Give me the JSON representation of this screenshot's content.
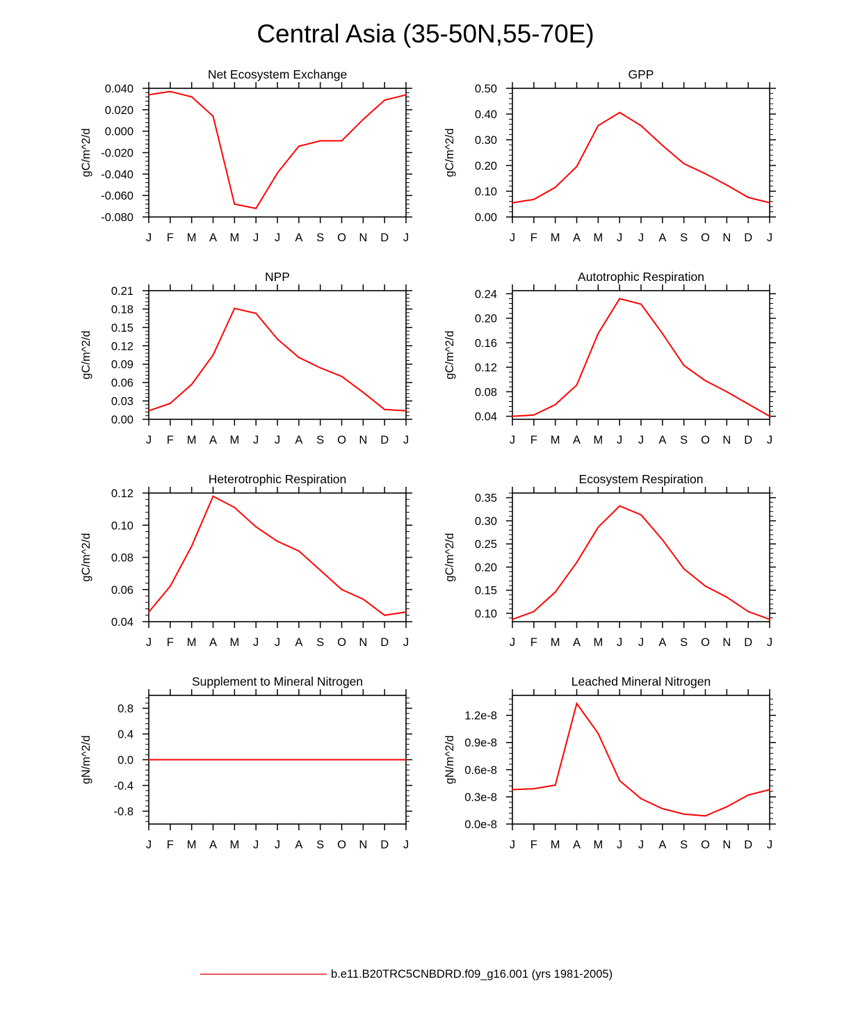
{
  "page": {
    "title": "Central Asia (35-50N,55-70E)"
  },
  "legend": {
    "line_color": "#e0202a",
    "label": "b.e11.B20TRC5CNBDRD.f09_g16.001 (yrs 1981-2005)"
  },
  "chart_data": [
    {
      "type": "line",
      "title": "Net Ecosystem Exchange",
      "ylabel": "gC/m^2/d",
      "x": [
        "J",
        "F",
        "M",
        "A",
        "M",
        "J",
        "J",
        "A",
        "S",
        "O",
        "N",
        "D",
        "J"
      ],
      "series": [
        {
          "name": "b.e11.B20TRC5CNBDRD.f09_g16.001 (yrs 1981-2005)",
          "color": "#ff0000",
          "values": [
            0.034,
            0.037,
            0.032,
            0.014,
            -0.068,
            -0.072,
            -0.039,
            -0.014,
            -0.009,
            -0.009,
            0.011,
            0.029,
            0.034
          ]
        }
      ],
      "ylim": [
        -0.08,
        0.04
      ],
      "yticks": [
        -0.08,
        -0.06,
        -0.04,
        -0.02,
        0.0,
        0.02,
        0.04
      ],
      "ytick_labels": [
        "-0.080",
        "-0.060",
        "-0.040",
        "-0.020",
        "0.000",
        "0.020",
        "0.040"
      ]
    },
    {
      "type": "line",
      "title": "GPP",
      "ylabel": "gC/m^2/d",
      "x": [
        "J",
        "F",
        "M",
        "A",
        "M",
        "J",
        "J",
        "A",
        "S",
        "O",
        "N",
        "D",
        "J"
      ],
      "series": [
        {
          "name": "b.e11.B20TRC5CNBDRD.f09_g16.001 (yrs 1981-2005)",
          "color": "#ff0000",
          "values": [
            0.055,
            0.068,
            0.115,
            0.196,
            0.355,
            0.406,
            0.355,
            0.278,
            0.207,
            0.168,
            0.124,
            0.076,
            0.055
          ]
        }
      ],
      "ylim": [
        0.0,
        0.5
      ],
      "yticks": [
        0.0,
        0.1,
        0.2,
        0.3,
        0.4,
        0.5
      ],
      "ytick_labels": [
        "0.00",
        "0.10",
        "0.20",
        "0.30",
        "0.40",
        "0.50"
      ]
    },
    {
      "type": "line",
      "title": "NPP",
      "ylabel": "gC/m^2/d",
      "x": [
        "J",
        "F",
        "M",
        "A",
        "M",
        "J",
        "J",
        "A",
        "S",
        "O",
        "N",
        "D",
        "J"
      ],
      "series": [
        {
          "name": "b.e11.B20TRC5CNBDRD.f09_g16.001 (yrs 1981-2005)",
          "color": "#ff0000",
          "values": [
            0.014,
            0.026,
            0.057,
            0.105,
            0.181,
            0.173,
            0.131,
            0.101,
            0.084,
            0.07,
            0.044,
            0.016,
            0.014
          ]
        }
      ],
      "ylim": [
        0.0,
        0.21
      ],
      "yticks": [
        0.0,
        0.03,
        0.06,
        0.09,
        0.12,
        0.15,
        0.18,
        0.21
      ],
      "ytick_labels": [
        "0.00",
        "0.03",
        "0.06",
        "0.09",
        "0.12",
        "0.15",
        "0.18",
        "0.21"
      ]
    },
    {
      "type": "line",
      "title": "Autotrophic Respiration",
      "ylabel": "gC/m^2/d",
      "x": [
        "J",
        "F",
        "M",
        "A",
        "M",
        "J",
        "J",
        "A",
        "S",
        "O",
        "N",
        "D",
        "J"
      ],
      "series": [
        {
          "name": "b.e11.B20TRC5CNBDRD.f09_g16.001 (yrs 1981-2005)",
          "color": "#ff0000",
          "values": [
            0.04,
            0.042,
            0.059,
            0.091,
            0.175,
            0.232,
            0.223,
            0.175,
            0.123,
            0.098,
            0.08,
            0.06,
            0.04
          ]
        }
      ],
      "ylim": [
        0.035,
        0.245
      ],
      "yticks": [
        0.04,
        0.08,
        0.12,
        0.16,
        0.2,
        0.24
      ],
      "ytick_labels": [
        "0.04",
        "0.08",
        "0.12",
        "0.16",
        "0.20",
        "0.24"
      ]
    },
    {
      "type": "line",
      "title": "Heterotrophic Respiration",
      "ylabel": "gC/m^2/d",
      "x": [
        "J",
        "F",
        "M",
        "A",
        "M",
        "J",
        "J",
        "A",
        "S",
        "O",
        "N",
        "D",
        "J"
      ],
      "series": [
        {
          "name": "b.e11.B20TRC5CNBDRD.f09_g16.001 (yrs 1981-2005)",
          "color": "#ff0000",
          "values": [
            0.046,
            0.062,
            0.087,
            0.118,
            0.111,
            0.099,
            0.09,
            0.084,
            0.072,
            0.06,
            0.054,
            0.044,
            0.046
          ]
        }
      ],
      "ylim": [
        0.04,
        0.12
      ],
      "yticks": [
        0.04,
        0.06,
        0.08,
        0.1,
        0.12
      ],
      "ytick_labels": [
        "0.04",
        "0.06",
        "0.08",
        "0.10",
        "0.12"
      ]
    },
    {
      "type": "line",
      "title": "Ecosystem Respiration",
      "ylabel": "gC/m^2/d",
      "x": [
        "J",
        "F",
        "M",
        "A",
        "M",
        "J",
        "J",
        "A",
        "S",
        "O",
        "N",
        "D",
        "J"
      ],
      "series": [
        {
          "name": "b.e11.B20TRC5CNBDRD.f09_g16.001 (yrs 1981-2005)",
          "color": "#ff0000",
          "values": [
            0.087,
            0.104,
            0.146,
            0.21,
            0.286,
            0.332,
            0.313,
            0.259,
            0.196,
            0.159,
            0.135,
            0.104,
            0.087
          ]
        }
      ],
      "ylim": [
        0.082,
        0.36
      ],
      "yticks": [
        0.1,
        0.15,
        0.2,
        0.25,
        0.3,
        0.35
      ],
      "ytick_labels": [
        "0.10",
        "0.15",
        "0.20",
        "0.25",
        "0.30",
        "0.35"
      ]
    },
    {
      "type": "line",
      "title": "Supplement to Mineral Nitrogen",
      "ylabel": "gN/m^2/d",
      "x": [
        "J",
        "F",
        "M",
        "A",
        "M",
        "J",
        "J",
        "A",
        "S",
        "O",
        "N",
        "D",
        "J"
      ],
      "series": [
        {
          "name": "b.e11.B20TRC5CNBDRD.f09_g16.001 (yrs 1981-2005)",
          "color": "#ff0000",
          "values": [
            0.0,
            0.0,
            0.0,
            0.0,
            0.0,
            0.0,
            0.0,
            0.0,
            0.0,
            0.0,
            0.0,
            0.0,
            0.0
          ]
        }
      ],
      "ylim": [
        -1.0,
        1.0
      ],
      "yticks": [
        -0.8,
        -0.4,
        0.0,
        0.4,
        0.8
      ],
      "ytick_labels": [
        "-0.8",
        "-0.4",
        "0.0",
        "0.4",
        "0.8"
      ]
    },
    {
      "type": "line",
      "title": "Leached Mineral Nitrogen",
      "ylabel": "gN/m^2/d",
      "x": [
        "J",
        "F",
        "M",
        "A",
        "M",
        "J",
        "J",
        "A",
        "S",
        "O",
        "N",
        "D",
        "J"
      ],
      "series": [
        {
          "name": "b.e11.B20TRC5CNBDRD.f09_g16.001 (yrs 1981-2005)",
          "color": "#ff0000",
          "values": [
            3.8e-09,
            3.9e-09,
            4.3e-09,
            1.33e-08,
            1e-08,
            4.8e-09,
            2.8e-09,
            1.7e-09,
            1.1e-09,
            9e-10,
            1.9e-09,
            3.2e-09,
            3.8e-09
          ]
        }
      ],
      "ylim": [
        0.0,
        1.42e-08
      ],
      "yticks": [
        0.0,
        3e-09,
        6e-09,
        9e-09,
        1.2e-08
      ],
      "ytick_labels": [
        "0.0e-8",
        "0.3e-8",
        "0.6e-8",
        "0.9e-8",
        "1.2e-8"
      ]
    }
  ]
}
